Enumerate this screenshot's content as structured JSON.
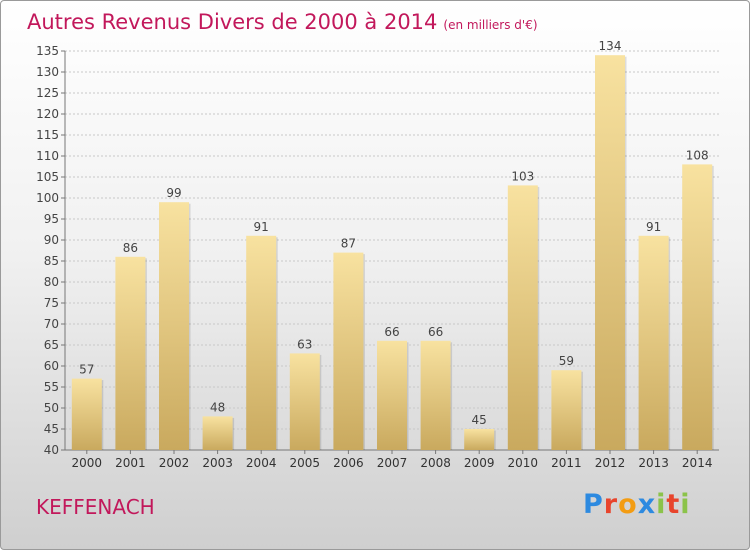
{
  "header": {
    "title": "Autres Revenus Divers de 2000 à 2014",
    "unit": "(en milliers d'€)"
  },
  "footer": {
    "commune": "KEFFENACH",
    "logo_letters": [
      {
        "ch": "P",
        "color": "#2d8ae0"
      },
      {
        "ch": "r",
        "color": "#e8442c"
      },
      {
        "ch": "o",
        "color": "#f39c12"
      },
      {
        "ch": "x",
        "color": "#2d8ae0"
      },
      {
        "ch": "i",
        "color": "#8bc34a"
      },
      {
        "ch": "t",
        "color": "#e8442c"
      },
      {
        "ch": "i",
        "color": "#8bc34a"
      }
    ]
  },
  "chart_data": {
    "type": "bar",
    "categories": [
      "2000",
      "2001",
      "2002",
      "2003",
      "2004",
      "2005",
      "2006",
      "2007",
      "2008",
      "2009",
      "2010",
      "2011",
      "2012",
      "2013",
      "2014"
    ],
    "values": [
      57,
      86,
      99,
      48,
      91,
      63,
      87,
      66,
      66,
      45,
      103,
      59,
      134,
      91,
      108
    ],
    "ylim": [
      40,
      135
    ],
    "yticks": [
      40,
      45,
      50,
      55,
      60,
      65,
      70,
      75,
      80,
      85,
      90,
      95,
      100,
      105,
      110,
      115,
      120,
      125,
      130,
      135
    ],
    "grid": true,
    "legend": "none",
    "bar_color_top": "#f8e2a0",
    "bar_color_bottom": "#c9a95e"
  }
}
